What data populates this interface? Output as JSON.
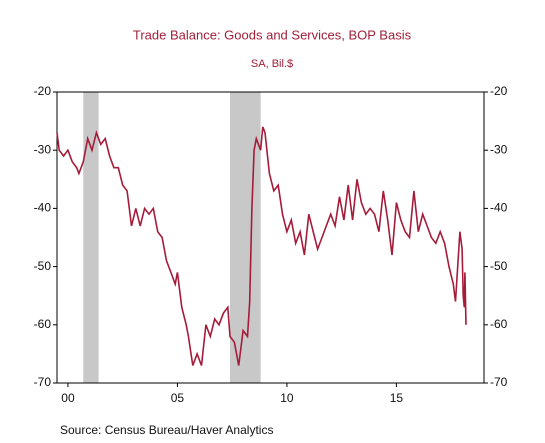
{
  "chart_data": {
    "type": "line",
    "title": "Trade Balance:  Goods and Services, BOP Basis",
    "subtitle": "SA, Bil.$",
    "source": "Source:  Census Bureau/Haver Analytics",
    "color": "#a51c3a",
    "xlim": [
      1999.5,
      2019.0
    ],
    "xticks": [
      {
        "value": 2000,
        "label": "00"
      },
      {
        "value": 2005,
        "label": "05"
      },
      {
        "value": 2010,
        "label": "10"
      },
      {
        "value": 2015,
        "label": "15"
      }
    ],
    "ylim": [
      -70,
      -20
    ],
    "yticks": [
      -20,
      -30,
      -40,
      -50,
      -60,
      -70
    ],
    "recessions": [
      [
        2000.7,
        2001.4
      ],
      [
        2007.4,
        2008.8
      ]
    ],
    "x": [
      1999.5,
      1999.6,
      1999.8,
      2000.0,
      2000.2,
      2000.4,
      2000.5,
      2000.7,
      2000.9,
      2001.1,
      2001.3,
      2001.5,
      2001.7,
      2001.9,
      2002.1,
      2002.3,
      2002.5,
      2002.7,
      2002.9,
      2003.1,
      2003.3,
      2003.5,
      2003.7,
      2003.9,
      2004.1,
      2004.3,
      2004.5,
      2004.7,
      2004.9,
      2005.0,
      2005.2,
      2005.4,
      2005.5,
      2005.7,
      2005.9,
      2006.1,
      2006.3,
      2006.5,
      2006.7,
      2006.9,
      2007.1,
      2007.3,
      2007.4,
      2007.6,
      2007.8,
      2008.0,
      2008.2,
      2008.3,
      2008.4,
      2008.5,
      2008.6,
      2008.8,
      2008.9,
      2009.0,
      2009.2,
      2009.4,
      2009.6,
      2009.8,
      2010.0,
      2010.2,
      2010.4,
      2010.6,
      2010.8,
      2011.0,
      2011.2,
      2011.4,
      2011.6,
      2011.8,
      2012.0,
      2012.2,
      2012.4,
      2012.6,
      2012.8,
      2013.0,
      2013.2,
      2013.4,
      2013.6,
      2013.8,
      2014.0,
      2014.2,
      2014.4,
      2014.6,
      2014.8,
      2015.0,
      2015.2,
      2015.4,
      2015.6,
      2015.8,
      2016.0,
      2016.2,
      2016.4,
      2016.6,
      2016.8,
      2017.0,
      2017.2,
      2017.4,
      2017.6,
      2017.7,
      2017.9,
      2018.0,
      2018.05,
      2018.1,
      2018.13,
      2018.18
    ],
    "values": [
      -27,
      -30,
      -31,
      -30,
      -32,
      -33,
      -34,
      -32,
      -28,
      -30,
      -27,
      -29,
      -28,
      -31,
      -33,
      -33,
      -36,
      -37,
      -43,
      -40,
      -43,
      -40,
      -41,
      -40,
      -44,
      -45,
      -49,
      -51,
      -53,
      -51,
      -57,
      -60,
      -62,
      -67,
      -65,
      -67,
      -60,
      -62,
      -59,
      -60,
      -58,
      -57,
      -62,
      -63,
      -67,
      -61,
      -62,
      -56,
      -40,
      -30,
      -28,
      -30,
      -26,
      -27,
      -34,
      -37,
      -36,
      -41,
      -44,
      -42,
      -46,
      -44,
      -48,
      -41,
      -44,
      -47,
      -45,
      -43,
      -41,
      -43,
      -38,
      -42,
      -36,
      -42,
      -35,
      -39,
      -41,
      -40,
      -41,
      -44,
      -37,
      -42,
      -48,
      -39,
      -42,
      -44,
      -45,
      -37,
      -44,
      -41,
      -43,
      -45,
      -46,
      -44,
      -46,
      -50,
      -53,
      -56,
      -44,
      -47,
      -55,
      -57,
      -51,
      -60
    ]
  }
}
